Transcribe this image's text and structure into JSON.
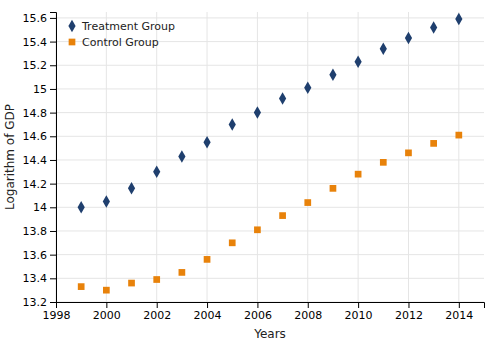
{
  "chart_data": {
    "type": "scatter",
    "x": [
      1999,
      2000,
      2001,
      2002,
      2003,
      2004,
      2005,
      2006,
      2007,
      2008,
      2009,
      2010,
      2011,
      2012,
      2013,
      2014
    ],
    "series": [
      {
        "name": "Treatment Group",
        "color": "#1f3f6e",
        "marker": "diamond",
        "values": [
          14.0,
          14.05,
          14.16,
          14.3,
          14.43,
          14.55,
          14.7,
          14.8,
          14.92,
          15.01,
          15.12,
          15.23,
          15.34,
          15.43,
          15.52,
          15.59
        ]
      },
      {
        "name": "Control Group",
        "color": "#e8820a",
        "marker": "square",
        "values": [
          13.33,
          13.3,
          13.36,
          13.39,
          13.45,
          13.56,
          13.7,
          13.81,
          13.93,
          14.04,
          14.16,
          14.28,
          14.38,
          14.46,
          14.54,
          14.61
        ]
      }
    ],
    "xlabel": "Years",
    "ylabel": "Logarithm of GDP",
    "xlim": [
      1998.0,
      2015.0
    ],
    "ylim": [
      13.2,
      15.65
    ],
    "xticks": [
      1998,
      2000,
      2002,
      2004,
      2006,
      2008,
      2010,
      2012,
      2014
    ],
    "yticks": [
      13.2,
      13.4,
      13.6,
      13.8,
      14.0,
      14.2,
      14.4,
      14.6,
      14.8,
      15.0,
      15.2,
      15.4,
      15.6
    ],
    "grid": true,
    "legend": "upper-left"
  }
}
